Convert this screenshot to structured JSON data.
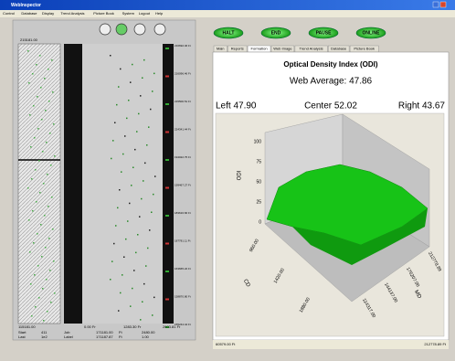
{
  "window": {
    "title": "WebInspector"
  },
  "menu": [
    "Control",
    "Database",
    "Display",
    "Trend Analysis",
    "Picture Book",
    "System",
    "Logout",
    "Help"
  ],
  "buttons": [
    "HALT",
    "END",
    "PAUSE",
    "ONLINE"
  ],
  "tabs": [
    "Main",
    "Reports",
    "Formation",
    "Web Image",
    "Trend Analysis",
    "Database",
    "Picture Book"
  ],
  "left_panel": {
    "top_label": "215181.00",
    "bottom_label": "115181.00",
    "scale_labels": [
      "216692.46 Ft",
      "216096.46 Ft",
      "215500.51 Ft",
      "224341.44 Ft",
      "194022.75 Ft",
      "199467.27 Ft",
      "183616.66 Ft",
      "187781.11 Ft",
      "163665.22 Ft",
      "158870.80 Ft",
      "155244.44 Ft"
    ],
    "x_labels": [
      "0.00 Fr",
      "1283.30 Fr",
      "2603.81 Fr"
    ],
    "footer": [
      [
        "Start",
        "411",
        "Job",
        "171181.00",
        "Ft",
        "2480.00"
      ],
      [
        "Last",
        "1e2",
        "Label",
        "171187.87",
        "Ft",
        "1.00"
      ]
    ]
  },
  "odi": {
    "title": "Optical Density Index (ODI)",
    "web_average": "Web Average: 47.86",
    "left": "Left 47.90",
    "center": "Center 52.02",
    "right": "Right 43.67",
    "odi_axis": "ODI",
    "cd_axis": "CD",
    "md_axis": "MD",
    "odi_ticks": [
      "100",
      "75",
      "50",
      "25",
      "0"
    ],
    "cd_ticks": [
      "960.00",
      "1420.00",
      "1880.00"
    ],
    "md_ticks": [
      "212778.89",
      "176207.00",
      "144137.00",
      "114317.00"
    ]
  },
  "status": {
    "left": "60579.00 Ft",
    "right": "212778.89 Ft"
  }
}
